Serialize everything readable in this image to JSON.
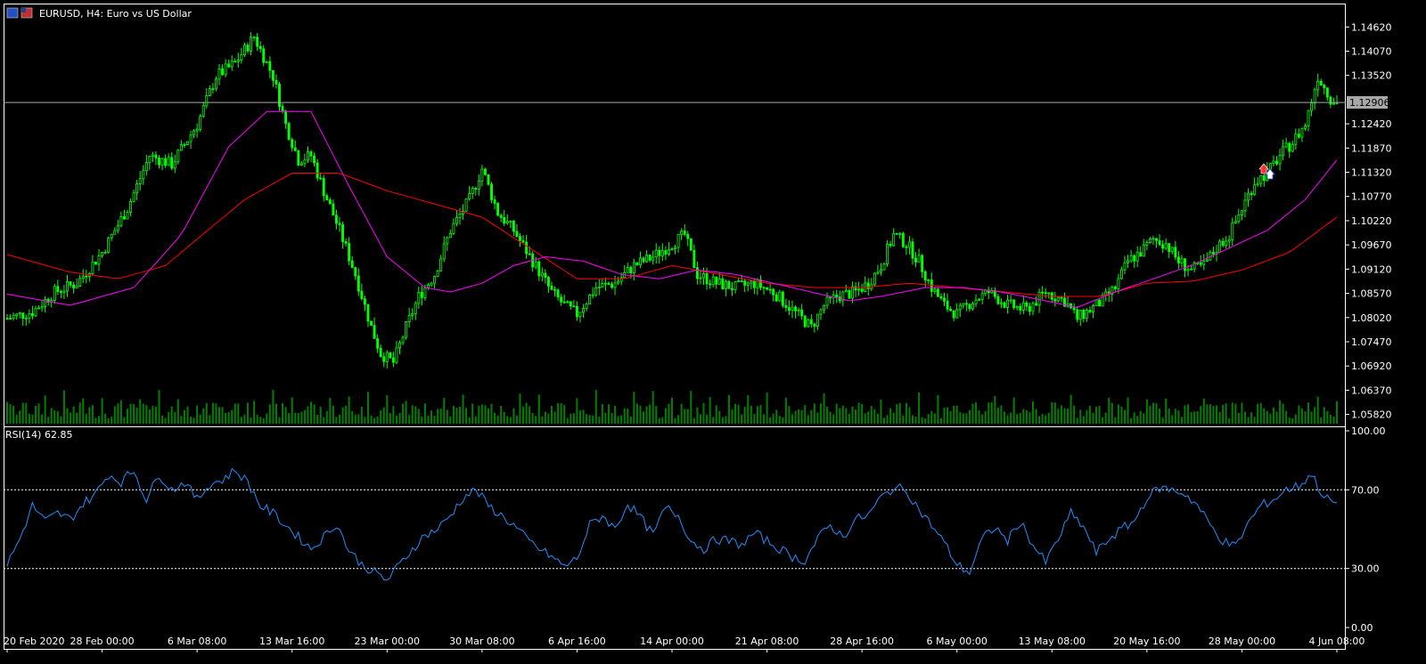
{
  "window": {
    "symbol_title": "EURUSD, H4:  Euro vs US Dollar",
    "flag_left_icon": "eu-flag-icon",
    "flag_right_icon": "us-flag-icon"
  },
  "price_panel": {
    "current_price": "1.12906",
    "y_ticks": [
      "1.14620",
      "1.14070",
      "1.13520",
      "1.12420",
      "1.11870",
      "1.11320",
      "1.10770",
      "1.10220",
      "1.09670",
      "1.09120",
      "1.08570",
      "1.08020",
      "1.07470",
      "1.06920",
      "1.06370",
      "1.05820"
    ]
  },
  "rsi_panel": {
    "title": "RSI(14) 62.85",
    "y_ticks": [
      "100.00",
      "70.00",
      "30.00",
      "0.00"
    ]
  },
  "x_axis": {
    "ticks": [
      "20 Feb 2020",
      "28 Feb 00:00",
      "6 Mar 08:00",
      "13 Mar 16:00",
      "23 Mar 00:00",
      "30 Mar 08:00",
      "6 Apr 16:00",
      "14 Apr 00:00",
      "21 Apr 08:00",
      "28 Apr 16:00",
      "6 May 00:00",
      "13 May 08:00",
      "20 May 16:00",
      "28 May 00:00",
      "4 Jun 08:00"
    ]
  },
  "colors": {
    "background": "#000000",
    "candle": "#00ff00",
    "volume": "#008000",
    "ma_fast": "#ff00ff",
    "ma_slow": "#ff0000",
    "rsi_line": "#1e90ff",
    "bid_line": "#a9a9a9",
    "price_tag_bg": "#a9a9a9",
    "axis": "#ffffff"
  },
  "chart_data": [
    {
      "type": "candlestick",
      "title": "EURUSD, H4:  Euro vs US Dollar",
      "ylim": [
        1.0565,
        1.1503
      ],
      "x_ticks": [
        "20 Feb 2020",
        "28 Feb 00:00",
        "6 Mar 08:00",
        "13 Mar 16:00",
        "23 Mar 00:00",
        "30 Mar 08:00",
        "6 Apr 16:00",
        "14 Apr 00:00",
        "21 Apr 08:00",
        "28 Apr 16:00",
        "6 May 00:00",
        "13 May 08:00",
        "20 May 16:00",
        "28 May 00:00",
        "4 Jun 08:00"
      ],
      "y_ticks": [
        1.1462,
        1.1407,
        1.1352,
        1.1242,
        1.1187,
        1.1132,
        1.1077,
        1.1022,
        1.0967,
        1.0912,
        1.0857,
        1.0802,
        1.0747,
        1.0692,
        1.0637,
        1.0582
      ],
      "current_price": 1.12906,
      "grid": false,
      "close_path": [
        [
          0,
          1.08
        ],
        [
          8,
          1.0815
        ],
        [
          15,
          1.086
        ],
        [
          22,
          1.088
        ],
        [
          30,
          1.095
        ],
        [
          38,
          1.105
        ],
        [
          45,
          1.117
        ],
        [
          52,
          1.115
        ],
        [
          60,
          1.124
        ],
        [
          66,
          1.135
        ],
        [
          72,
          1.138
        ],
        [
          78,
          1.144
        ],
        [
          84,
          1.135
        ],
        [
          88,
          1.124
        ],
        [
          92,
          1.116
        ],
        [
          96,
          1.117
        ],
        [
          100,
          1.109
        ],
        [
          105,
          1.1
        ],
        [
          110,
          1.09
        ],
        [
          115,
          1.078
        ],
        [
          118,
          1.072
        ],
        [
          122,
          1.07
        ],
        [
          126,
          1.078
        ],
        [
          130,
          1.085
        ],
        [
          135,
          1.09
        ],
        [
          140,
          1.1
        ],
        [
          146,
          1.107
        ],
        [
          150,
          1.114
        ],
        [
          155,
          1.104
        ],
        [
          160,
          1.1
        ],
        [
          166,
          1.093
        ],
        [
          172,
          1.086
        ],
        [
          176,
          1.083
        ],
        [
          180,
          1.081
        ],
        [
          186,
          1.087
        ],
        [
          192,
          1.088
        ],
        [
          198,
          1.092
        ],
        [
          204,
          1.094
        ],
        [
          210,
          1.097
        ],
        [
          214,
          1.099
        ],
        [
          218,
          1.09
        ],
        [
          224,
          1.088
        ],
        [
          230,
          1.087
        ],
        [
          236,
          1.088
        ],
        [
          242,
          1.086
        ],
        [
          248,
          1.082
        ],
        [
          254,
          1.078
        ],
        [
          258,
          1.083
        ],
        [
          262,
          1.085
        ],
        [
          268,
          1.086
        ],
        [
          272,
          1.088
        ],
        [
          276,
          1.092
        ],
        [
          280,
          1.099
        ],
        [
          284,
          1.097
        ],
        [
          288,
          1.093
        ],
        [
          292,
          1.087
        ],
        [
          296,
          1.083
        ],
        [
          300,
          1.081
        ],
        [
          305,
          1.084
        ],
        [
          310,
          1.086
        ],
        [
          316,
          1.083
        ],
        [
          322,
          1.082
        ],
        [
          328,
          1.086
        ],
        [
          334,
          1.084
        ],
        [
          338,
          1.08
        ],
        [
          342,
          1.082
        ],
        [
          346,
          1.084
        ],
        [
          350,
          1.087
        ],
        [
          354,
          1.093
        ],
        [
          358,
          1.095
        ],
        [
          362,
          1.098
        ],
        [
          366,
          1.097
        ],
        [
          370,
          1.093
        ],
        [
          374,
          1.091
        ],
        [
          378,
          1.092
        ],
        [
          382,
          1.096
        ],
        [
          386,
          1.099
        ],
        [
          390,
          1.105
        ],
        [
          394,
          1.111
        ],
        [
          398,
          1.113
        ],
        [
          402,
          1.117
        ],
        [
          406,
          1.12
        ],
        [
          410,
          1.124
        ],
        [
          414,
          1.135
        ],
        [
          418,
          1.13
        ],
        [
          420,
          1.129
        ]
      ],
      "volume_bars": "per candle (unlabeled)",
      "series": [
        {
          "values": [
            [
              0,
              1.0855
            ],
            [
              20,
              1.083
            ],
            [
              40,
              1.087
            ],
            [
              55,
              1.099
            ],
            [
              70,
              1.119
            ],
            [
              82,
              1.127
            ],
            [
              96,
              1.127
            ],
            [
              108,
              1.11
            ],
            [
              120,
              1.094
            ],
            [
              132,
              1.087
            ],
            [
              140,
              1.086
            ],
            [
              150,
              1.088
            ],
            [
              160,
              1.092
            ],
            [
              170,
              1.094
            ],
            [
              182,
              1.093
            ],
            [
              194,
              1.09
            ],
            [
              206,
              1.089
            ],
            [
              218,
              1.091
            ],
            [
              230,
              1.09
            ],
            [
              242,
              1.088
            ],
            [
              254,
              1.086
            ],
            [
              266,
              1.084
            ],
            [
              276,
              1.085
            ],
            [
              290,
              1.087
            ],
            [
              302,
              1.087
            ],
            [
              314,
              1.086
            ],
            [
              328,
              1.084
            ],
            [
              338,
              1.0825
            ],
            [
              350,
              1.086
            ],
            [
              362,
              1.089
            ],
            [
              374,
              1.092
            ],
            [
              386,
              1.096
            ],
            [
              398,
              1.1
            ],
            [
              410,
              1.107
            ],
            [
              420,
              1.116
            ]
          ]
        },
        {
          "values": [
            [
              0,
              1.0945
            ],
            [
              20,
              1.0905
            ],
            [
              35,
              1.089
            ],
            [
              50,
              1.092
            ],
            [
              60,
              1.098
            ],
            [
              75,
              1.107
            ],
            [
              90,
              1.113
            ],
            [
              105,
              1.113
            ],
            [
              120,
              1.109
            ],
            [
              135,
              1.106
            ],
            [
              150,
              1.103
            ],
            [
              165,
              1.096
            ],
            [
              180,
              1.089
            ],
            [
              195,
              1.089
            ],
            [
              210,
              1.092
            ],
            [
              225,
              1.09
            ],
            [
              240,
              1.088
            ],
            [
              255,
              1.087
            ],
            [
              270,
              1.087
            ],
            [
              285,
              1.088
            ],
            [
              300,
              1.087
            ],
            [
              315,
              1.086
            ],
            [
              330,
              1.085
            ],
            [
              345,
              1.085
            ],
            [
              360,
              1.088
            ],
            [
              375,
              1.0885
            ],
            [
              390,
              1.091
            ],
            [
              405,
              1.095
            ],
            [
              420,
              1.103
            ]
          ]
        }
      ]
    },
    {
      "type": "line",
      "title": "RSI(14) 62.85",
      "ylim": [
        0,
        100
      ],
      "y_ticks": [
        100,
        70,
        30,
        0
      ],
      "levels": [
        70,
        30
      ],
      "series": [
        {
          "values": [
            [
              0,
              32
            ],
            [
              4,
              45
            ],
            [
              8,
              62
            ],
            [
              12,
              54
            ],
            [
              16,
              58
            ],
            [
              20,
              55
            ],
            [
              24,
              63
            ],
            [
              28,
              68
            ],
            [
              32,
              78
            ],
            [
              36,
              74
            ],
            [
              40,
              80
            ],
            [
              44,
              65
            ],
            [
              48,
              78
            ],
            [
              52,
              70
            ],
            [
              56,
              74
            ],
            [
              60,
              65
            ],
            [
              64,
              73
            ],
            [
              68,
              75
            ],
            [
              72,
              80
            ],
            [
              76,
              74
            ],
            [
              80,
              62
            ],
            [
              84,
              58
            ],
            [
              88,
              52
            ],
            [
              92,
              46
            ],
            [
              96,
              40
            ],
            [
              100,
              46
            ],
            [
              104,
              53
            ],
            [
              108,
              39
            ],
            [
              112,
              32
            ],
            [
              116,
              28
            ],
            [
              120,
              24
            ],
            [
              124,
              32
            ],
            [
              128,
              40
            ],
            [
              132,
              47
            ],
            [
              136,
              50
            ],
            [
              140,
              57
            ],
            [
              144,
              66
            ],
            [
              148,
              70
            ],
            [
              152,
              62
            ],
            [
              156,
              57
            ],
            [
              160,
              52
            ],
            [
              164,
              45
            ],
            [
              168,
              40
            ],
            [
              172,
              36
            ],
            [
              176,
              31
            ],
            [
              180,
              35
            ],
            [
              184,
              52
            ],
            [
              188,
              57
            ],
            [
              192,
              50
            ],
            [
              196,
              63
            ],
            [
              200,
              56
            ],
            [
              204,
              47
            ],
            [
              208,
              61
            ],
            [
              212,
              57
            ],
            [
              216,
              44
            ],
            [
              220,
              40
            ],
            [
              224,
              45
            ],
            [
              228,
              44
            ],
            [
              232,
              42
            ],
            [
              236,
              48
            ],
            [
              240,
              44
            ],
            [
              244,
              40
            ],
            [
              248,
              36
            ],
            [
              252,
              34
            ],
            [
              256,
              45
            ],
            [
              260,
              52
            ],
            [
              264,
              46
            ],
            [
              268,
              55
            ],
            [
              272,
              57
            ],
            [
              276,
              66
            ],
            [
              280,
              71
            ],
            [
              284,
              70
            ],
            [
              288,
              60
            ],
            [
              292,
              52
            ],
            [
              296,
              43
            ],
            [
              300,
              32
            ],
            [
              304,
              28
            ],
            [
              308,
              45
            ],
            [
              312,
              51
            ],
            [
              316,
              44
            ],
            [
              320,
              54
            ],
            [
              324,
              42
            ],
            [
              328,
              33
            ],
            [
              332,
              45
            ],
            [
              336,
              58
            ],
            [
              340,
              51
            ],
            [
              344,
              38
            ],
            [
              348,
              45
            ],
            [
              352,
              50
            ],
            [
              356,
              54
            ],
            [
              360,
              66
            ],
            [
              364,
              71
            ],
            [
              368,
              70
            ],
            [
              372,
              68
            ],
            [
              376,
              62
            ],
            [
              380,
              52
            ],
            [
              384,
              44
            ],
            [
              388,
              41
            ],
            [
              392,
              53
            ],
            [
              396,
              62
            ],
            [
              400,
              65
            ],
            [
              404,
              70
            ],
            [
              408,
              72
            ],
            [
              412,
              78
            ],
            [
              416,
              66
            ],
            [
              420,
              63
            ]
          ]
        }
      ]
    }
  ]
}
